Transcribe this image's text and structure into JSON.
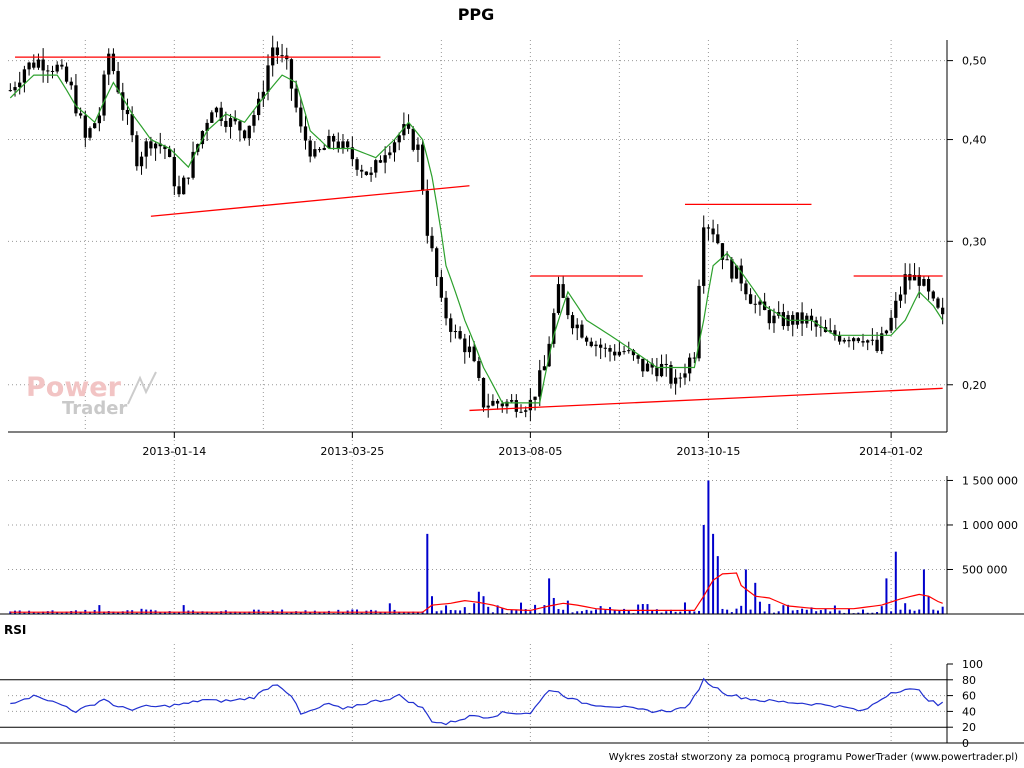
{
  "chart_data": [
    {
      "panel": "price",
      "type": "candlestick",
      "title": "PPG",
      "scale": "log",
      "ylim": [
        0.175,
        0.53
      ],
      "y_ticks": [
        0.2,
        0.3,
        0.4,
        0.5
      ],
      "y_tick_labels": [
        "0,20",
        "0,30",
        "0,40",
        "0,50"
      ],
      "x_tick_labels": [
        "2013-01-14",
        "2013-03-25",
        "2013-08-05",
        "2013-10-15",
        "2014-01-02"
      ],
      "x_tick_index": [
        35,
        73,
        111,
        149,
        188
      ],
      "bar_count": 200,
      "grid": true,
      "close_path": [
        [
          0,
          0.46
        ],
        [
          3,
          0.49
        ],
        [
          6,
          0.5
        ],
        [
          10,
          0.49
        ],
        [
          13,
          0.46
        ],
        [
          16,
          0.4
        ],
        [
          19,
          0.43
        ],
        [
          21,
          0.51
        ],
        [
          24,
          0.44
        ],
        [
          27,
          0.38
        ],
        [
          30,
          0.4
        ],
        [
          33,
          0.39
        ],
        [
          36,
          0.34
        ],
        [
          39,
          0.38
        ],
        [
          43,
          0.44
        ],
        [
          47,
          0.42
        ],
        [
          50,
          0.41
        ],
        [
          53,
          0.44
        ],
        [
          56,
          0.52
        ],
        [
          59,
          0.49
        ],
        [
          62,
          0.41
        ],
        [
          65,
          0.38
        ],
        [
          69,
          0.4
        ],
        [
          73,
          0.38
        ],
        [
          77,
          0.36
        ],
        [
          80,
          0.39
        ],
        [
          84,
          0.41
        ],
        [
          87,
          0.39
        ],
        [
          89,
          0.31
        ],
        [
          92,
          0.25
        ],
        [
          95,
          0.23
        ],
        [
          98,
          0.22
        ],
        [
          101,
          0.19
        ],
        [
          104,
          0.19
        ],
        [
          108,
          0.19
        ],
        [
          111,
          0.19
        ],
        [
          114,
          0.21
        ],
        [
          117,
          0.26
        ],
        [
          120,
          0.24
        ],
        [
          123,
          0.23
        ],
        [
          127,
          0.22
        ],
        [
          131,
          0.22
        ],
        [
          135,
          0.21
        ],
        [
          139,
          0.21
        ],
        [
          142,
          0.2
        ],
        [
          146,
          0.22
        ],
        [
          148,
          0.32
        ],
        [
          150,
          0.31
        ],
        [
          153,
          0.28
        ],
        [
          156,
          0.27
        ],
        [
          159,
          0.25
        ],
        [
          163,
          0.24
        ],
        [
          167,
          0.24
        ],
        [
          170,
          0.24
        ],
        [
          174,
          0.23
        ],
        [
          178,
          0.23
        ],
        [
          182,
          0.23
        ],
        [
          185,
          0.22
        ],
        [
          188,
          0.24
        ],
        [
          191,
          0.27
        ],
        [
          194,
          0.27
        ],
        [
          197,
          0.25
        ],
        [
          199,
          0.24
        ]
      ],
      "moving_average": [
        [
          0,
          0.45
        ],
        [
          5,
          0.48
        ],
        [
          10,
          0.48
        ],
        [
          14,
          0.44
        ],
        [
          18,
          0.42
        ],
        [
          22,
          0.47
        ],
        [
          26,
          0.43
        ],
        [
          30,
          0.4
        ],
        [
          34,
          0.39
        ],
        [
          38,
          0.37
        ],
        [
          42,
          0.41
        ],
        [
          46,
          0.43
        ],
        [
          50,
          0.42
        ],
        [
          54,
          0.45
        ],
        [
          58,
          0.48
        ],
        [
          61,
          0.47
        ],
        [
          64,
          0.41
        ],
        [
          68,
          0.39
        ],
        [
          73,
          0.39
        ],
        [
          78,
          0.38
        ],
        [
          82,
          0.4
        ],
        [
          85,
          0.42
        ],
        [
          88,
          0.4
        ],
        [
          90,
          0.36
        ],
        [
          93,
          0.28
        ],
        [
          97,
          0.24
        ],
        [
          101,
          0.21
        ],
        [
          105,
          0.19
        ],
        [
          110,
          0.19
        ],
        [
          113,
          0.19
        ],
        [
          116,
          0.23
        ],
        [
          119,
          0.26
        ],
        [
          123,
          0.24
        ],
        [
          128,
          0.23
        ],
        [
          133,
          0.22
        ],
        [
          138,
          0.21
        ],
        [
          142,
          0.21
        ],
        [
          146,
          0.21
        ],
        [
          148,
          0.24
        ],
        [
          150,
          0.28
        ],
        [
          153,
          0.29
        ],
        [
          157,
          0.27
        ],
        [
          161,
          0.25
        ],
        [
          166,
          0.24
        ],
        [
          171,
          0.24
        ],
        [
          176,
          0.23
        ],
        [
          181,
          0.23
        ],
        [
          185,
          0.23
        ],
        [
          188,
          0.23
        ],
        [
          191,
          0.24
        ],
        [
          194,
          0.26
        ],
        [
          197,
          0.25
        ],
        [
          199,
          0.24
        ]
      ],
      "trend_lines": [
        {
          "kind": "resistance",
          "from": [
            1,
            0.505
          ],
          "to": [
            79,
            0.505
          ]
        },
        {
          "kind": "support",
          "from": [
            30,
            0.322
          ],
          "to": [
            98,
            0.351
          ]
        },
        {
          "kind": "resistance",
          "from": [
            111,
            0.272
          ],
          "to": [
            135,
            0.272
          ]
        },
        {
          "kind": "support",
          "from": [
            98,
            0.186
          ],
          "to": [
            199,
            0.198
          ]
        },
        {
          "kind": "resistance",
          "from": [
            144,
            0.333
          ],
          "to": [
            171,
            0.333
          ]
        },
        {
          "kind": "resistance",
          "from": [
            180,
            0.272
          ],
          "to": [
            199,
            0.272
          ]
        }
      ],
      "watermark": {
        "line1": "Power",
        "line2": "Trader"
      },
      "colors": {
        "bars": "#000000",
        "moving_average": "#2ca02c",
        "trend_lines": "#ff0000",
        "grid": "#999999"
      }
    },
    {
      "panel": "volume",
      "type": "bar",
      "ylim": [
        0,
        1550000
      ],
      "y_ticks": [
        500000,
        1000000,
        1500000
      ],
      "y_tick_labels": [
        "500 000",
        "1 000 000",
        "1 500 000"
      ],
      "spikes": [
        [
          19,
          100000
        ],
        [
          37,
          100000
        ],
        [
          81,
          120000
        ],
        [
          89,
          900000
        ],
        [
          90,
          200000
        ],
        [
          100,
          250000
        ],
        [
          101,
          200000
        ],
        [
          115,
          400000
        ],
        [
          116,
          180000
        ],
        [
          119,
          150000
        ],
        [
          148,
          1000000
        ],
        [
          149,
          1500000
        ],
        [
          150,
          900000
        ],
        [
          151,
          650000
        ],
        [
          157,
          500000
        ],
        [
          159,
          350000
        ],
        [
          187,
          400000
        ],
        [
          189,
          700000
        ],
        [
          195,
          500000
        ],
        [
          196,
          200000
        ]
      ],
      "baseline": 30000,
      "moving_average": [
        [
          0,
          20000
        ],
        [
          88,
          20000
        ],
        [
          90,
          100000
        ],
        [
          94,
          120000
        ],
        [
          97,
          150000
        ],
        [
          100,
          130000
        ],
        [
          103,
          100000
        ],
        [
          106,
          50000
        ],
        [
          111,
          40000
        ],
        [
          115,
          90000
        ],
        [
          118,
          120000
        ],
        [
          121,
          100000
        ],
        [
          125,
          60000
        ],
        [
          130,
          40000
        ],
        [
          140,
          40000
        ],
        [
          146,
          40000
        ],
        [
          148,
          200000
        ],
        [
          150,
          380000
        ],
        [
          152,
          450000
        ],
        [
          155,
          460000
        ],
        [
          156,
          320000
        ],
        [
          159,
          200000
        ],
        [
          162,
          180000
        ],
        [
          166,
          90000
        ],
        [
          172,
          60000
        ],
        [
          180,
          60000
        ],
        [
          186,
          100000
        ],
        [
          190,
          170000
        ],
        [
          194,
          220000
        ],
        [
          196,
          200000
        ],
        [
          198,
          140000
        ],
        [
          199,
          120000
        ]
      ],
      "colors": {
        "bars": "#0000cc",
        "moving_average": "#ff0000"
      }
    },
    {
      "panel": "rsi",
      "type": "line",
      "label": "RSI",
      "ylim": [
        0,
        100
      ],
      "y_ticks": [
        0,
        20,
        40,
        60,
        80,
        100
      ],
      "y_tick_labels": [
        "0",
        "20",
        "40",
        "60",
        "80",
        "100"
      ],
      "bands": [
        20,
        80
      ],
      "values": [
        [
          0,
          50
        ],
        [
          3,
          57
        ],
        [
          6,
          60
        ],
        [
          9,
          52
        ],
        [
          12,
          46
        ],
        [
          14,
          40
        ],
        [
          17,
          47
        ],
        [
          20,
          56
        ],
        [
          23,
          45
        ],
        [
          26,
          43
        ],
        [
          29,
          46
        ],
        [
          32,
          46
        ],
        [
          35,
          48
        ],
        [
          38,
          50
        ],
        [
          41,
          55
        ],
        [
          44,
          53
        ],
        [
          48,
          54
        ],
        [
          52,
          58
        ],
        [
          55,
          70
        ],
        [
          57,
          75
        ],
        [
          60,
          60
        ],
        [
          62,
          36
        ],
        [
          65,
          42
        ],
        [
          68,
          50
        ],
        [
          71,
          42
        ],
        [
          74,
          48
        ],
        [
          77,
          52
        ],
        [
          80,
          55
        ],
        [
          83,
          60
        ],
        [
          86,
          50
        ],
        [
          88,
          44
        ],
        [
          90,
          28
        ],
        [
          93,
          24
        ],
        [
          96,
          30
        ],
        [
          99,
          35
        ],
        [
          102,
          33
        ],
        [
          105,
          38
        ],
        [
          108,
          38
        ],
        [
          111,
          38
        ],
        [
          113,
          52
        ],
        [
          115,
          68
        ],
        [
          117,
          64
        ],
        [
          120,
          55
        ],
        [
          123,
          50
        ],
        [
          126,
          48
        ],
        [
          130,
          46
        ],
        [
          134,
          42
        ],
        [
          138,
          40
        ],
        [
          142,
          42
        ],
        [
          145,
          48
        ],
        [
          148,
          80
        ],
        [
          150,
          72
        ],
        [
          153,
          62
        ],
        [
          156,
          58
        ],
        [
          160,
          54
        ],
        [
          165,
          52
        ],
        [
          170,
          50
        ],
        [
          175,
          48
        ],
        [
          179,
          44
        ],
        [
          182,
          40
        ],
        [
          185,
          52
        ],
        [
          188,
          64
        ],
        [
          191,
          68
        ],
        [
          194,
          66
        ],
        [
          196,
          55
        ],
        [
          198,
          48
        ],
        [
          199,
          50
        ]
      ],
      "colors": {
        "line": "#2030d0",
        "bands": "#000000"
      }
    }
  ],
  "footer": {
    "credit": "Wykres został stworzony za pomocą programu PowerTrader (www.powertrader.pl)"
  }
}
